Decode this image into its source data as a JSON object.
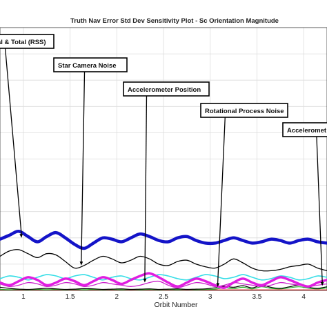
{
  "chart_data": {
    "type": "line",
    "title": "Truth Nav Error Std Dev Sensitivity Plot - Sc Orientation Magnitude",
    "xlabel": "Orbit Number",
    "ylabel": "",
    "xlim": [
      0.75,
      4.25
    ],
    "ylim": [
      0,
      1
    ],
    "grid": true,
    "x_ticks": [
      1,
      1.5,
      2,
      2.5,
      3,
      3.5,
      4
    ],
    "x_tick_labels": [
      "1",
      "1.5",
      "2",
      "2.5",
      "3",
      "3.5",
      "4"
    ],
    "series": [
      {
        "name": "Total (RSS)",
        "color": "#1414c8",
        "width": 4.5,
        "x": [
          0.75,
          0.85,
          0.95,
          1.05,
          1.15,
          1.25,
          1.35,
          1.45,
          1.55,
          1.65,
          1.75,
          1.85,
          1.95,
          2.05,
          2.15,
          2.25,
          2.35,
          2.45,
          2.55,
          2.65,
          2.75,
          2.85,
          2.95,
          3.05,
          3.15,
          3.25,
          3.35,
          3.45,
          3.55,
          3.65,
          3.75,
          3.85,
          3.95,
          4.05,
          4.15,
          4.25
        ],
        "y": [
          0.195,
          0.21,
          0.225,
          0.205,
          0.185,
          0.205,
          0.22,
          0.2,
          0.175,
          0.16,
          0.18,
          0.2,
          0.195,
          0.185,
          0.2,
          0.215,
          0.205,
          0.19,
          0.185,
          0.2,
          0.205,
          0.19,
          0.18,
          0.18,
          0.19,
          0.2,
          0.19,
          0.18,
          0.185,
          0.195,
          0.19,
          0.18,
          0.19,
          0.195,
          0.185,
          0.18
        ]
      },
      {
        "name": "",
        "color": "#000000",
        "width": 1.3,
        "x": [
          0.75,
          0.85,
          0.95,
          1.05,
          1.15,
          1.25,
          1.35,
          1.45,
          1.55,
          1.65,
          1.75,
          1.85,
          1.95,
          2.05,
          2.15,
          2.25,
          2.35,
          2.45,
          2.55,
          2.65,
          2.75,
          2.85,
          2.95,
          3.05,
          3.15,
          3.25,
          3.35,
          3.45,
          3.55,
          3.65,
          3.75,
          3.85,
          3.95,
          4.05,
          4.15,
          4.25
        ],
        "y": [
          0.13,
          0.15,
          0.155,
          0.14,
          0.125,
          0.14,
          0.135,
          0.11,
          0.085,
          0.095,
          0.115,
          0.13,
          0.12,
          0.105,
          0.115,
          0.13,
          0.12,
          0.1,
          0.095,
          0.11,
          0.115,
          0.1,
          0.09,
          0.085,
          0.1,
          0.12,
          0.105,
          0.085,
          0.075,
          0.075,
          0.08,
          0.09,
          0.095,
          0.1,
          0.085,
          0.075
        ]
      },
      {
        "name": "",
        "color": "#e01ee0",
        "width": 3.5,
        "x": [
          0.75,
          0.85,
          0.95,
          1.05,
          1.15,
          1.25,
          1.35,
          1.45,
          1.55,
          1.65,
          1.75,
          1.85,
          1.95,
          2.05,
          2.15,
          2.25,
          2.35,
          2.45,
          2.55,
          2.65,
          2.75,
          2.85,
          2.95,
          3.05,
          3.15,
          3.25,
          3.35,
          3.45,
          3.55,
          3.65,
          3.75,
          3.85,
          3.95,
          4.05,
          4.15,
          4.25
        ],
        "y": [
          0.03,
          0.02,
          0.035,
          0.05,
          0.04,
          0.02,
          0.03,
          0.045,
          0.035,
          0.02,
          0.035,
          0.05,
          0.04,
          0.025,
          0.04,
          0.055,
          0.065,
          0.05,
          0.03,
          0.015,
          0.03,
          0.045,
          0.035,
          0.02,
          0.01,
          0.03,
          0.045,
          0.03,
          0.02,
          0.035,
          0.05,
          0.04,
          0.025,
          0.015,
          0.03,
          0.04
        ]
      },
      {
        "name": "",
        "color": "#33dde6",
        "width": 1.6,
        "x": [
          0.75,
          0.85,
          0.95,
          1.05,
          1.15,
          1.25,
          1.35,
          1.45,
          1.55,
          1.65,
          1.75,
          1.85,
          1.95,
          2.05,
          2.15,
          2.25,
          2.35,
          2.45,
          2.55,
          2.65,
          2.75,
          2.85,
          2.95,
          3.05,
          3.15,
          3.25,
          3.35,
          3.45,
          3.55,
          3.65,
          3.75,
          3.85,
          3.95,
          4.05,
          4.15,
          4.25
        ],
        "y": [
          0.045,
          0.055,
          0.05,
          0.04,
          0.05,
          0.06,
          0.055,
          0.045,
          0.055,
          0.06,
          0.05,
          0.04,
          0.05,
          0.055,
          0.045,
          0.04,
          0.05,
          0.06,
          0.055,
          0.045,
          0.04,
          0.05,
          0.06,
          0.055,
          0.045,
          0.05,
          0.06,
          0.05,
          0.04,
          0.045,
          0.055,
          0.05,
          0.04,
          0.045,
          0.055,
          0.05
        ]
      },
      {
        "name": "",
        "color": "#cc22cc",
        "width": 1.3,
        "x": [
          0.75,
          0.85,
          0.95,
          1.05,
          1.15,
          1.25,
          1.35,
          1.45,
          1.55,
          1.65,
          1.75,
          1.85,
          1.95,
          2.05,
          2.15,
          2.25,
          2.35,
          2.45,
          2.55,
          2.65,
          2.75,
          2.85,
          2.95,
          3.05,
          3.15,
          3.25,
          3.35,
          3.45,
          3.55,
          3.65,
          3.75,
          3.85,
          3.95,
          4.05,
          4.15,
          4.25
        ],
        "y": [
          0.025,
          0.015,
          0.02,
          0.03,
          0.025,
          0.015,
          0.02,
          0.03,
          0.025,
          0.015,
          0.02,
          0.03,
          0.025,
          0.02,
          0.015,
          0.02,
          0.03,
          0.035,
          0.02,
          0.01,
          0.02,
          0.03,
          0.025,
          0.015,
          0.02,
          0.03,
          0.025,
          0.02,
          0.015,
          0.02,
          0.03,
          0.025,
          0.02,
          0.015,
          0.02,
          0.025
        ]
      },
      {
        "name": "",
        "color": "#000000",
        "width": 1.2,
        "x": [
          0.75,
          0.85,
          0.95,
          1.05,
          1.15,
          1.25,
          1.35,
          1.45,
          1.55,
          1.65,
          1.75,
          1.85,
          1.95,
          2.05,
          2.15,
          2.25,
          2.35,
          2.45,
          2.55,
          2.65,
          2.75,
          2.85,
          2.95,
          3.05,
          3.15,
          3.25,
          3.35,
          3.45,
          3.55,
          3.65,
          3.75,
          3.85,
          3.95,
          4.05,
          4.15,
          4.25
        ],
        "y": [
          0.012,
          0.008,
          0.005,
          0.004,
          0.006,
          0.008,
          0.006,
          0.004,
          0.005,
          0.007,
          0.006,
          0.004,
          0.005,
          0.006,
          0.004,
          0.005,
          0.006,
          0.004,
          0.005,
          0.006,
          0.004,
          0.005,
          0.006,
          0.01,
          0.016,
          0.012,
          0.018,
          0.01,
          0.02,
          0.012,
          0.008,
          0.014,
          0.02,
          0.012,
          0.008,
          0.014
        ]
      },
      {
        "name": "",
        "color": "#22b022",
        "width": 1.2,
        "x": [
          0.75,
          0.85,
          0.95,
          1.05,
          1.15,
          1.25,
          1.35,
          1.45,
          1.55,
          1.65,
          1.75,
          1.85,
          1.95,
          2.05,
          2.15,
          2.25,
          2.35,
          2.45,
          2.55,
          2.65,
          2.75,
          2.85,
          2.95,
          3.05,
          3.15,
          3.25,
          3.35,
          3.45,
          3.55,
          3.65,
          3.75,
          3.85,
          3.95,
          4.05,
          4.15,
          4.25
        ],
        "y": [
          0.004,
          0.003,
          0.004,
          0.003,
          0.004,
          0.003,
          0.004,
          0.003,
          0.004,
          0.003,
          0.004,
          0.003,
          0.004,
          0.003,
          0.004,
          0.003,
          0.004,
          0.003,
          0.004,
          0.003,
          0.004,
          0.003,
          0.004,
          0.005,
          0.01,
          0.007,
          0.012,
          0.006,
          0.014,
          0.008,
          0.006,
          0.01,
          0.014,
          0.009,
          0.006,
          0.01
        ]
      },
      {
        "name": "",
        "color": "#d42020",
        "width": 1.2,
        "x": [
          0.75,
          0.85,
          0.95,
          1.05,
          1.15,
          1.25,
          1.35,
          1.45,
          1.55,
          1.65,
          1.75,
          1.85,
          1.95,
          2.05,
          2.15,
          2.25,
          2.35,
          2.45,
          2.55,
          2.65,
          2.75,
          2.85,
          2.95,
          3.05,
          3.15,
          3.25,
          3.35,
          3.45,
          3.55,
          3.65,
          3.75,
          3.85,
          3.95,
          4.05,
          4.15,
          4.25
        ],
        "y": [
          0.002,
          0.002,
          0.002,
          0.002,
          0.002,
          0.002,
          0.002,
          0.002,
          0.002,
          0.002,
          0.002,
          0.002,
          0.002,
          0.002,
          0.002,
          0.002,
          0.002,
          0.002,
          0.002,
          0.002,
          0.002,
          0.002,
          0.002,
          0.002,
          0.002,
          0.002,
          0.002,
          0.002,
          0.002,
          0.002,
          0.002,
          0.002,
          0.002,
          0.002,
          0.002,
          0.002
        ]
      }
    ],
    "annotations": [
      {
        "label": "al & Total (RSS)",
        "point": [
          0.98,
          0.195
        ]
      },
      {
        "label": "Star Camera Noise",
        "point": [
          1.62,
          0.09
        ]
      },
      {
        "label": "Accelerometer Position",
        "point": [
          2.3,
          0.025
        ]
      },
      {
        "label": "Rotational Process Noise",
        "point": [
          3.08,
          0.008
        ]
      },
      {
        "label": "Acceleromet",
        "point": [
          4.2,
          0.012
        ]
      }
    ]
  }
}
